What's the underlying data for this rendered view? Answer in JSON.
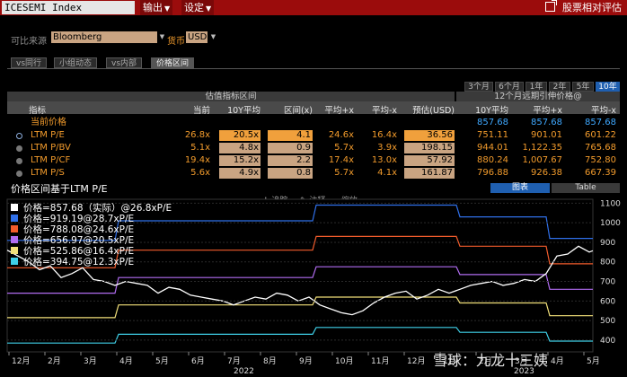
{
  "topbar": {
    "title": "ICESEMI Index",
    "menu_output": "输出",
    "menu_settings": "设定",
    "right_button": "股票相对评估"
  },
  "source": {
    "label": "可比来源",
    "value": "Bloomberg",
    "currency_label": "货币",
    "currency_value": "USD"
  },
  "tabs": [
    {
      "label": "vs同行"
    },
    {
      "label": "小组动态"
    },
    {
      "label": "vs内部"
    },
    {
      "label": "价格区间"
    }
  ],
  "period_buttons": [
    {
      "label": "3个月"
    },
    {
      "label": "6个月"
    },
    {
      "label": "1年"
    },
    {
      "label": "2年"
    },
    {
      "label": "5年"
    },
    {
      "label": "10年"
    }
  ],
  "table": {
    "group_left": "估值指标区间",
    "group_right": "12个月远期引伸价格@",
    "headers": [
      "指标",
      "当前",
      "10Y平均",
      "区间(x)",
      "平均+x",
      "平均-x",
      "预估(USD)",
      "10Y平均",
      "平均+x",
      "平均-x"
    ],
    "current_price_row": {
      "label": "当前价格",
      "p1": "857.68",
      "p2": "857.68",
      "p3": "857.68"
    },
    "rows": [
      {
        "label": "LTM P/E",
        "current": "26.8x",
        "avg": "20.5x",
        "range": "4.1",
        "plus": "24.6x",
        "minus": "16.4x",
        "est": "36.56",
        "p_avg": "751.11",
        "p_plus": "901.01",
        "p_minus": "601.22"
      },
      {
        "label": "LTM P/BV",
        "current": "5.1x",
        "avg": "4.8x",
        "range": "0.9",
        "plus": "5.7x",
        "minus": "3.9x",
        "est": "198.15",
        "p_avg": "944.01",
        "p_plus": "1,122.35",
        "p_minus": "765.68"
      },
      {
        "label": "LTM P/CF",
        "current": "19.4x",
        "avg": "15.2x",
        "range": "2.2",
        "plus": "17.4x",
        "minus": "13.0x",
        "est": "57.92",
        "p_avg": "880.24",
        "p_plus": "1,007.67",
        "p_minus": "752.80"
      },
      {
        "label": "LTM P/S",
        "current": "5.6x",
        "avg": "4.9x",
        "range": "0.8",
        "plus": "5.7x",
        "minus": "4.1x",
        "est": "161.87",
        "p_avg": "796.88",
        "p_plus": "926.38",
        "p_minus": "667.39"
      }
    ]
  },
  "chart_header": {
    "title": "价格区间基于LTM P/E",
    "btn_chart": "图表",
    "btn_table": "Table",
    "tool_track": "追踪",
    "tool_annotate": "注释",
    "tool_zoom": "缩放"
  },
  "legend": [
    {
      "label": "价格=857.68（实际）@26.8xP/E",
      "color": "#ffffff"
    },
    {
      "label": "价格=919.19@28.7xP/E",
      "color": "#2f6fe8"
    },
    {
      "label": "价格=788.08@24.6xP/E",
      "color": "#f25c2c"
    },
    {
      "label": "价格=656.97@20.5xP/E",
      "color": "#b06cf0"
    },
    {
      "label": "价格=525.86@16.4xP/E",
      "color": "#f2e07a"
    },
    {
      "label": "价格=394.75@12.3xP/E",
      "color": "#3fd0e8"
    }
  ],
  "watermark": "雪球：九龙十三姨",
  "chart_data": {
    "type": "line",
    "x_ticks": [
      "12月",
      "2月",
      "3月",
      "4月",
      "5月",
      "6月",
      "7月",
      "8月",
      "9月",
      "10月",
      "11月",
      "12月",
      "1月",
      "2月",
      "3月",
      "4月",
      "5月"
    ],
    "year_labels": [
      "2022",
      "2023"
    ],
    "y_ticks": [
      400,
      500,
      600,
      700,
      800,
      900,
      1000,
      1100
    ],
    "ylim": [
      340,
      1120
    ],
    "series": [
      {
        "name": "价格=919.19@28.7xP/E",
        "color": "#2f6fe8",
        "points": [
          [
            0,
            910
          ],
          [
            0.5,
            910
          ],
          [
            3.0,
            910
          ],
          [
            3.1,
            1010
          ],
          [
            8.5,
            1010
          ],
          [
            8.6,
            1090
          ],
          [
            12.5,
            1090
          ],
          [
            12.6,
            1030
          ],
          [
            15.0,
            1030
          ],
          [
            15.1,
            920
          ],
          [
            16.3,
            920
          ]
        ]
      },
      {
        "name": "价格=788.08@24.6xP/E",
        "color": "#f25c2c",
        "points": [
          [
            0,
            770
          ],
          [
            3.0,
            770
          ],
          [
            3.1,
            860
          ],
          [
            8.5,
            860
          ],
          [
            8.6,
            930
          ],
          [
            12.5,
            930
          ],
          [
            12.6,
            880
          ],
          [
            15.0,
            880
          ],
          [
            15.1,
            790
          ],
          [
            16.3,
            790
          ]
        ]
      },
      {
        "name": "价格=656.97@20.5xP/E",
        "color": "#b06cf0",
        "points": [
          [
            0,
            640
          ],
          [
            3.0,
            640
          ],
          [
            3.1,
            720
          ],
          [
            8.5,
            720
          ],
          [
            8.6,
            775
          ],
          [
            12.5,
            775
          ],
          [
            12.6,
            735
          ],
          [
            15.0,
            735
          ],
          [
            15.1,
            660
          ],
          [
            16.3,
            660
          ]
        ]
      },
      {
        "name": "价格=525.86@16.4xP/E",
        "color": "#f2e07a",
        "points": [
          [
            0,
            515
          ],
          [
            3.0,
            515
          ],
          [
            3.1,
            580
          ],
          [
            8.5,
            580
          ],
          [
            8.6,
            620
          ],
          [
            12.5,
            620
          ],
          [
            12.6,
            590
          ],
          [
            15.0,
            590
          ],
          [
            15.1,
            525
          ],
          [
            16.3,
            525
          ]
        ]
      },
      {
        "name": "价格=394.75@12.3xP/E",
        "color": "#3fd0e8",
        "points": [
          [
            0,
            385
          ],
          [
            3.0,
            385
          ],
          [
            3.1,
            430
          ],
          [
            8.5,
            430
          ],
          [
            8.6,
            465
          ],
          [
            12.5,
            465
          ],
          [
            12.6,
            440
          ],
          [
            15.0,
            440
          ],
          [
            15.1,
            395
          ],
          [
            16.3,
            395
          ]
        ]
      },
      {
        "name": "价格=857.68（实际）@26.8xP/E",
        "color": "#ffffff",
        "points": [
          [
            0,
            860
          ],
          [
            0.3,
            830
          ],
          [
            0.6,
            800
          ],
          [
            0.9,
            760
          ],
          [
            1.2,
            780
          ],
          [
            1.5,
            720
          ],
          [
            1.8,
            740
          ],
          [
            2.1,
            770
          ],
          [
            2.4,
            710
          ],
          [
            2.7,
            700
          ],
          [
            3.0,
            680
          ],
          [
            3.3,
            700
          ],
          [
            3.6,
            690
          ],
          [
            3.9,
            680
          ],
          [
            4.2,
            640
          ],
          [
            4.5,
            670
          ],
          [
            4.8,
            660
          ],
          [
            5.1,
            630
          ],
          [
            5.4,
            620
          ],
          [
            5.7,
            610
          ],
          [
            6.0,
            600
          ],
          [
            6.3,
            580
          ],
          [
            6.6,
            600
          ],
          [
            6.9,
            620
          ],
          [
            7.2,
            610
          ],
          [
            7.5,
            640
          ],
          [
            7.8,
            630
          ],
          [
            8.1,
            600
          ],
          [
            8.4,
            620
          ],
          [
            8.7,
            580
          ],
          [
            9.0,
            560
          ],
          [
            9.3,
            540
          ],
          [
            9.6,
            530
          ],
          [
            9.9,
            550
          ],
          [
            10.2,
            590
          ],
          [
            10.5,
            620
          ],
          [
            10.8,
            640
          ],
          [
            11.1,
            650
          ],
          [
            11.4,
            610
          ],
          [
            11.7,
            630
          ],
          [
            12.0,
            660
          ],
          [
            12.3,
            640
          ],
          [
            12.6,
            660
          ],
          [
            12.9,
            680
          ],
          [
            13.2,
            690
          ],
          [
            13.5,
            700
          ],
          [
            13.8,
            680
          ],
          [
            14.1,
            690
          ],
          [
            14.4,
            710
          ],
          [
            14.7,
            700
          ],
          [
            15.0,
            740
          ],
          [
            15.3,
            830
          ],
          [
            15.6,
            840
          ],
          [
            15.9,
            880
          ],
          [
            16.2,
            850
          ],
          [
            16.3,
            857
          ]
        ]
      }
    ]
  }
}
